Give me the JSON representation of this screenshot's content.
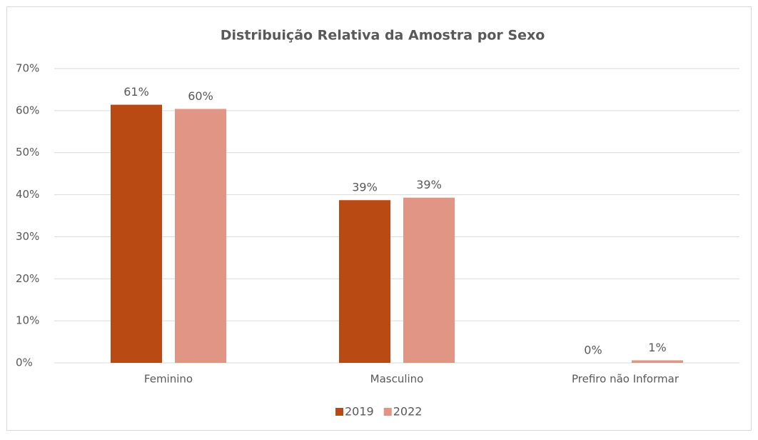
{
  "chart_data": {
    "type": "bar",
    "title": "Distribuição Relativa da Amostra por Sexo",
    "categories": [
      "Feminino",
      "Masculino",
      "Prefiro não Informar"
    ],
    "series": [
      {
        "name": "2019",
        "color": "#ba4a13",
        "values": [
          61.4,
          38.7,
          0
        ],
        "value_labels": [
          "61%",
          "39%",
          "0%"
        ]
      },
      {
        "name": "2022",
        "color": "#e09585",
        "values": [
          60.4,
          39.3,
          0.6
        ],
        "value_labels": [
          "60%",
          "39%",
          "1%"
        ]
      }
    ],
    "ylim": [
      0,
      70
    ],
    "yticks": [
      {
        "value": 0,
        "label": "0%"
      },
      {
        "value": 10,
        "label": "10%"
      },
      {
        "value": 20,
        "label": "20%"
      },
      {
        "value": 30,
        "label": "30%"
      },
      {
        "value": 40,
        "label": "40%"
      },
      {
        "value": 50,
        "label": "50%"
      },
      {
        "value": 60,
        "label": "60%"
      },
      {
        "value": 70,
        "label": "70%"
      }
    ],
    "grid": true,
    "legend": "bottom"
  }
}
